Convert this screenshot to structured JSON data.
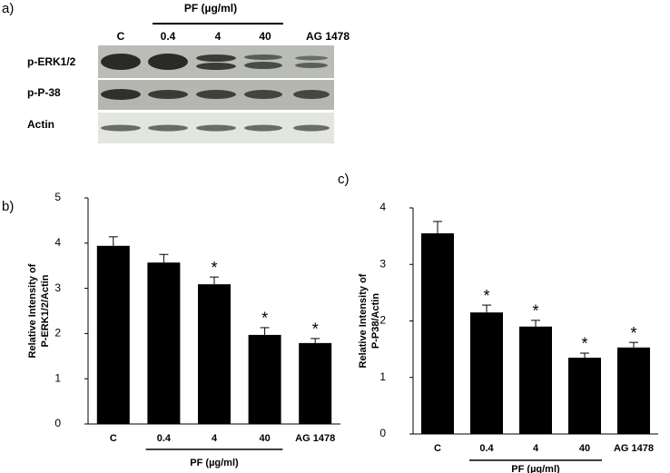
{
  "blot": {
    "panel_label": "a)",
    "group_label": "PF  (µg/ml)",
    "lanes": [
      "C",
      "0.4",
      "4",
      "40",
      "AG 1478"
    ],
    "rows": [
      "p-ERK1/2",
      "p-P-38",
      "Actin"
    ]
  },
  "chart_data": [
    {
      "type": "bar",
      "panel_label": "b)",
      "y_label": [
        "Relative Intensity of",
        "P-ERK1/2/Actin"
      ],
      "categories": [
        "C",
        "0.4",
        "4",
        "40",
        "AG 1478"
      ],
      "group_label": "PF  (µg/ml)",
      "values": [
        3.94,
        3.57,
        3.09,
        1.97,
        1.79
      ],
      "errors": [
        0.2,
        0.18,
        0.16,
        0.16,
        0.1
      ],
      "significance": [
        null,
        null,
        "*",
        "*",
        "*"
      ],
      "color": "#000000",
      "ylim": [
        0,
        5
      ],
      "yticks": [
        0,
        1,
        2,
        3,
        4,
        5
      ]
    },
    {
      "type": "bar",
      "panel_label": "c)",
      "y_label": [
        "Relative Intensity of",
        "P-P38/Actin"
      ],
      "categories": [
        "C",
        "0.4",
        "4",
        "40",
        "AG 1478"
      ],
      "group_label": "PF  (µg/ml)",
      "values": [
        3.55,
        2.15,
        1.9,
        1.35,
        1.53
      ],
      "errors": [
        0.21,
        0.13,
        0.11,
        0.08,
        0.09
      ],
      "significance": [
        null,
        "*",
        "*",
        "*",
        "*"
      ],
      "color": "#000000",
      "ylim": [
        0,
        4
      ],
      "yticks": [
        0,
        1,
        2,
        3,
        4
      ]
    }
  ]
}
